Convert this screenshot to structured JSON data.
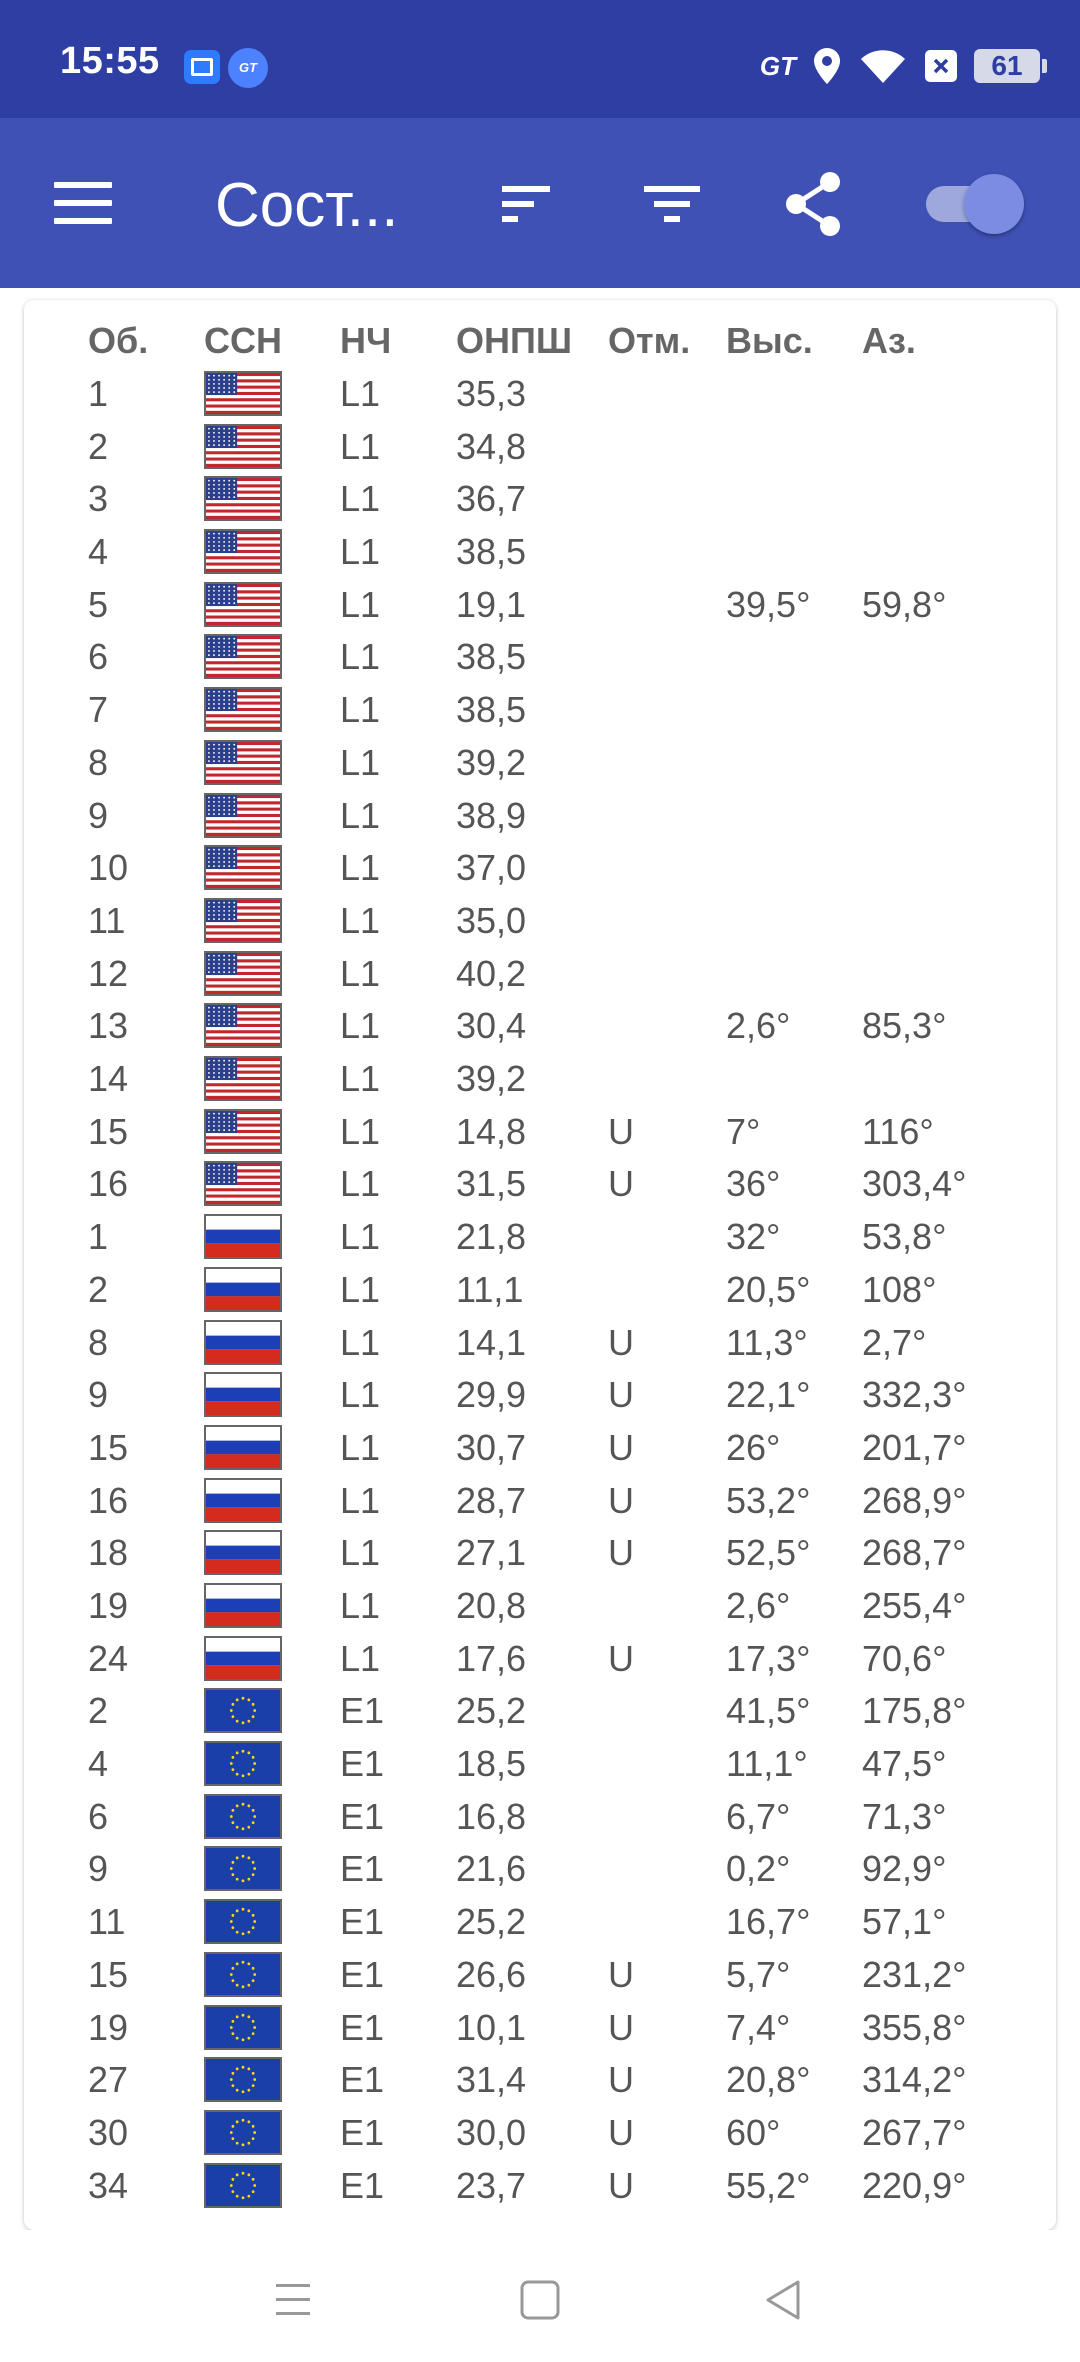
{
  "status_bar": {
    "time": "15:55",
    "gt_label": "GT",
    "app_badge_label": "GT",
    "battery": "61",
    "icons": [
      "screen-share-icon",
      "gt-app-icon",
      "location-icon",
      "wifi-icon",
      "close-box-icon",
      "battery-icon"
    ]
  },
  "app_bar": {
    "title": "Сост...",
    "icons": [
      "menu-icon",
      "sort-icon",
      "filter-icon",
      "share-icon",
      "toggle-switch"
    ],
    "toggle_on": true
  },
  "table": {
    "headers": {
      "ob": "Об.",
      "gnss": "ССН",
      "nch": "НЧ",
      "onpsh": "ОНПШ",
      "otm": "Отм.",
      "vys": "Выс.",
      "az": "Аз."
    },
    "rows": [
      {
        "ob": "1",
        "flag": "usa",
        "nch": "L1",
        "onpsh": "35,3",
        "otm": "",
        "vys": "",
        "az": ""
      },
      {
        "ob": "2",
        "flag": "usa",
        "nch": "L1",
        "onpsh": "34,8",
        "otm": "",
        "vys": "",
        "az": ""
      },
      {
        "ob": "3",
        "flag": "usa",
        "nch": "L1",
        "onpsh": "36,7",
        "otm": "",
        "vys": "",
        "az": ""
      },
      {
        "ob": "4",
        "flag": "usa",
        "nch": "L1",
        "onpsh": "38,5",
        "otm": "",
        "vys": "",
        "az": ""
      },
      {
        "ob": "5",
        "flag": "usa",
        "nch": "L1",
        "onpsh": "19,1",
        "otm": "",
        "vys": "39,5°",
        "az": "59,8°"
      },
      {
        "ob": "6",
        "flag": "usa",
        "nch": "L1",
        "onpsh": "38,5",
        "otm": "",
        "vys": "",
        "az": ""
      },
      {
        "ob": "7",
        "flag": "usa",
        "nch": "L1",
        "onpsh": "38,5",
        "otm": "",
        "vys": "",
        "az": ""
      },
      {
        "ob": "8",
        "flag": "usa",
        "nch": "L1",
        "onpsh": "39,2",
        "otm": "",
        "vys": "",
        "az": ""
      },
      {
        "ob": "9",
        "flag": "usa",
        "nch": "L1",
        "onpsh": "38,9",
        "otm": "",
        "vys": "",
        "az": ""
      },
      {
        "ob": "10",
        "flag": "usa",
        "nch": "L1",
        "onpsh": "37,0",
        "otm": "",
        "vys": "",
        "az": ""
      },
      {
        "ob": "11",
        "flag": "usa",
        "nch": "L1",
        "onpsh": "35,0",
        "otm": "",
        "vys": "",
        "az": ""
      },
      {
        "ob": "12",
        "flag": "usa",
        "nch": "L1",
        "onpsh": "40,2",
        "otm": "",
        "vys": "",
        "az": ""
      },
      {
        "ob": "13",
        "flag": "usa",
        "nch": "L1",
        "onpsh": "30,4",
        "otm": "",
        "vys": "2,6°",
        "az": "85,3°"
      },
      {
        "ob": "14",
        "flag": "usa",
        "nch": "L1",
        "onpsh": "39,2",
        "otm": "",
        "vys": "",
        "az": ""
      },
      {
        "ob": "15",
        "flag": "usa",
        "nch": "L1",
        "onpsh": "14,8",
        "otm": "U",
        "vys": "7°",
        "az": "116°"
      },
      {
        "ob": "16",
        "flag": "usa",
        "nch": "L1",
        "onpsh": "31,5",
        "otm": "U",
        "vys": "36°",
        "az": "303,4°"
      },
      {
        "ob": "1",
        "flag": "russia",
        "nch": "L1",
        "onpsh": "21,8",
        "otm": "",
        "vys": "32°",
        "az": "53,8°"
      },
      {
        "ob": "2",
        "flag": "russia",
        "nch": "L1",
        "onpsh": "11,1",
        "otm": "",
        "vys": "20,5°",
        "az": "108°"
      },
      {
        "ob": "8",
        "flag": "russia",
        "nch": "L1",
        "onpsh": "14,1",
        "otm": "U",
        "vys": "11,3°",
        "az": "2,7°"
      },
      {
        "ob": "9",
        "flag": "russia",
        "nch": "L1",
        "onpsh": "29,9",
        "otm": "U",
        "vys": "22,1°",
        "az": "332,3°"
      },
      {
        "ob": "15",
        "flag": "russia",
        "nch": "L1",
        "onpsh": "30,7",
        "otm": "U",
        "vys": "26°",
        "az": "201,7°"
      },
      {
        "ob": "16",
        "flag": "russia",
        "nch": "L1",
        "onpsh": "28,7",
        "otm": "U",
        "vys": "53,2°",
        "az": "268,9°"
      },
      {
        "ob": "18",
        "flag": "russia",
        "nch": "L1",
        "onpsh": "27,1",
        "otm": "U",
        "vys": "52,5°",
        "az": "268,7°"
      },
      {
        "ob": "19",
        "flag": "russia",
        "nch": "L1",
        "onpsh": "20,8",
        "otm": "",
        "vys": "2,6°",
        "az": "255,4°"
      },
      {
        "ob": "24",
        "flag": "russia",
        "nch": "L1",
        "onpsh": "17,6",
        "otm": "U",
        "vys": "17,3°",
        "az": "70,6°"
      },
      {
        "ob": "2",
        "flag": "eu",
        "nch": "E1",
        "onpsh": "25,2",
        "otm": "",
        "vys": "41,5°",
        "az": "175,8°"
      },
      {
        "ob": "4",
        "flag": "eu",
        "nch": "E1",
        "onpsh": "18,5",
        "otm": "",
        "vys": "11,1°",
        "az": "47,5°"
      },
      {
        "ob": "6",
        "flag": "eu",
        "nch": "E1",
        "onpsh": "16,8",
        "otm": "",
        "vys": "6,7°",
        "az": "71,3°"
      },
      {
        "ob": "9",
        "flag": "eu",
        "nch": "E1",
        "onpsh": "21,6",
        "otm": "",
        "vys": "0,2°",
        "az": "92,9°"
      },
      {
        "ob": "11",
        "flag": "eu",
        "nch": "E1",
        "onpsh": "25,2",
        "otm": "",
        "vys": "16,7°",
        "az": "57,1°"
      },
      {
        "ob": "15",
        "flag": "eu",
        "nch": "E1",
        "onpsh": "26,6",
        "otm": "U",
        "vys": "5,7°",
        "az": "231,2°"
      },
      {
        "ob": "19",
        "flag": "eu",
        "nch": "E1",
        "onpsh": "10,1",
        "otm": "U",
        "vys": "7,4°",
        "az": "355,8°"
      },
      {
        "ob": "27",
        "flag": "eu",
        "nch": "E1",
        "onpsh": "31,4",
        "otm": "U",
        "vys": "20,8°",
        "az": "314,2°"
      },
      {
        "ob": "30",
        "flag": "eu",
        "nch": "E1",
        "onpsh": "30,0",
        "otm": "U",
        "vys": "60°",
        "az": "267,7°"
      },
      {
        "ob": "34",
        "flag": "eu",
        "nch": "E1",
        "onpsh": "23,7",
        "otm": "U",
        "vys": "55,2°",
        "az": "220,9°"
      }
    ]
  },
  "nav_bar": {
    "icons": [
      "recent-apps-icon",
      "home-icon",
      "back-icon"
    ]
  },
  "colors": {
    "status_bar": "#2f3ea3",
    "app_bar": "#3f51b5",
    "text": "#555555",
    "toggle_thumb": "#7d8ce3"
  }
}
